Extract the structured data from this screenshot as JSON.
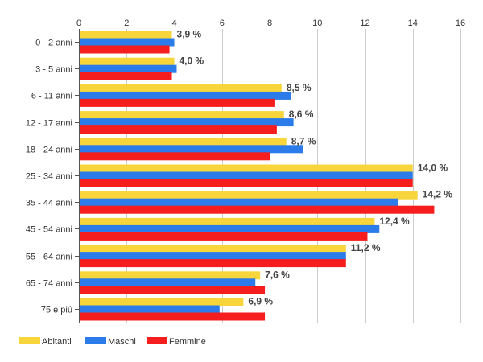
{
  "chart_data": {
    "type": "bar",
    "orientation": "horizontal",
    "categories": [
      "0 - 2 anni",
      "3 - 5 anni",
      "6 - 11 anni",
      "12 - 17 anni",
      "18 - 24 anni",
      "25 - 34 anni",
      "35 - 44 anni",
      "45 - 54 anni",
      "55 - 64 anni",
      "65 - 74 anni",
      "75 e più"
    ],
    "series": [
      {
        "name": "Abitanti",
        "color": "#f7d53b",
        "values": [
          3.9,
          4.0,
          8.5,
          8.6,
          8.7,
          14.0,
          14.2,
          12.4,
          11.2,
          7.6,
          6.9
        ]
      },
      {
        "name": "Maschi",
        "color": "#2b7bea",
        "values": [
          4.0,
          4.1,
          8.9,
          9.0,
          9.4,
          14.0,
          13.4,
          12.6,
          11.2,
          7.4,
          5.9
        ]
      },
      {
        "name": "Femmine",
        "color": "#f51d1d",
        "values": [
          3.8,
          3.9,
          8.2,
          8.3,
          8.0,
          14.0,
          14.9,
          12.1,
          11.2,
          7.8,
          7.8
        ]
      }
    ],
    "data_labels": [
      "3,9 %",
      "4,0 %",
      "8,5 %",
      "8,6 %",
      "8,7 %",
      "14,0 %",
      "14,2 %",
      "12,4 %",
      "11,2 %",
      "7,6 %",
      "6,9 %"
    ],
    "xlim": [
      0,
      16
    ],
    "x_ticks": [
      "0",
      "2",
      "4",
      "6",
      "8",
      "10",
      "12",
      "14",
      "16"
    ],
    "x_axis_position": "top",
    "grid": true,
    "legend_position": "bottom-left"
  }
}
